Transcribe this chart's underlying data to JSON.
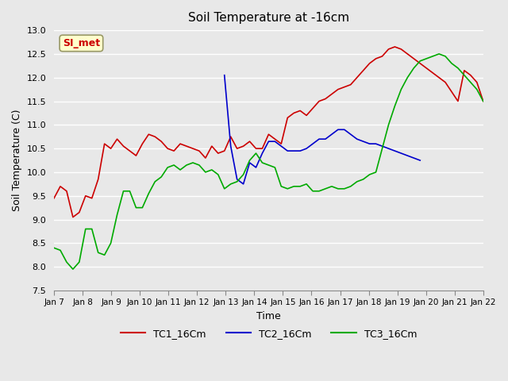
{
  "title": "Soil Temperature at -16cm",
  "xlabel": "Time",
  "ylabel": "Soil Temperature (C)",
  "ylim": [
    7.5,
    13.0
  ],
  "background_color": "#e8e8e8",
  "plot_bg_color": "#e8e8e8",
  "grid_color": "#ffffff",
  "annotation_text": "SI_met",
  "annotation_color": "#cc0000",
  "annotation_bg": "#ffffcc",
  "annotation_border": "#999966",
  "x_tick_labels": [
    "Jan 7",
    "Jan 8",
    "Jan 9",
    "Jan 10",
    "Jan 11",
    "Jan 12",
    "Jan 13",
    "Jan 14",
    "Jan 15",
    "Jan 16",
    "Jan 17",
    "Jan 18",
    "Jan 19",
    "Jan 20",
    "Jan 21",
    "Jan 22"
  ],
  "line_colors": {
    "TC1": "#cc0000",
    "TC2": "#0000cc",
    "TC3": "#00aa00"
  },
  "legend_labels": [
    "TC1_16Cm",
    "TC2_16Cm",
    "TC3_16Cm"
  ],
  "TC1_16Cm": [
    9.45,
    9.7,
    9.6,
    9.05,
    9.15,
    9.5,
    9.45,
    9.85,
    10.6,
    10.5,
    10.7,
    10.55,
    10.45,
    10.35,
    10.6,
    10.8,
    10.75,
    10.65,
    10.5,
    10.45,
    10.6,
    10.55,
    10.5,
    10.45,
    10.3,
    10.55,
    10.4,
    10.45,
    10.75,
    10.5,
    10.55,
    10.65,
    10.5,
    10.5,
    10.8,
    10.7,
    10.6,
    11.15,
    11.25,
    11.3,
    11.2,
    11.35,
    11.5,
    11.55,
    11.65,
    11.75,
    11.8,
    11.85,
    12.0,
    12.15,
    12.3,
    12.4,
    12.45,
    12.6,
    12.65,
    12.6,
    12.5,
    12.4,
    12.3,
    12.2,
    12.1,
    12.0,
    11.9,
    11.7,
    11.5,
    12.15,
    12.05,
    11.9,
    11.5
  ],
  "TC2_16Cm": [
    null,
    null,
    null,
    null,
    null,
    null,
    null,
    null,
    null,
    null,
    null,
    null,
    null,
    null,
    null,
    null,
    null,
    null,
    null,
    null,
    null,
    null,
    null,
    null,
    null,
    null,
    null,
    12.05,
    10.55,
    9.85,
    9.75,
    10.2,
    10.1,
    10.4,
    10.65,
    10.65,
    10.55,
    10.45,
    10.45,
    10.45,
    10.5,
    10.6,
    10.7,
    10.7,
    10.8,
    10.9,
    10.9,
    10.8,
    10.7,
    10.65,
    10.6,
    10.6,
    10.55,
    10.5,
    10.45,
    10.4,
    10.35,
    10.3,
    10.25,
    null,
    null,
    null,
    null,
    null,
    null,
    null,
    null,
    null,
    null
  ],
  "TC3_16Cm": [
    8.4,
    8.35,
    8.1,
    7.95,
    8.1,
    8.8,
    8.8,
    8.3,
    8.25,
    8.5,
    9.1,
    9.6,
    9.6,
    9.25,
    9.25,
    9.55,
    9.8,
    9.9,
    10.1,
    10.15,
    10.05,
    10.15,
    10.2,
    10.15,
    10.0,
    10.05,
    9.95,
    9.65,
    9.75,
    9.8,
    9.95,
    10.25,
    10.4,
    10.2,
    10.15,
    10.1,
    9.7,
    9.65,
    9.7,
    9.7,
    9.75,
    9.6,
    9.6,
    9.65,
    9.7,
    9.65,
    9.65,
    9.7,
    9.8,
    9.85,
    9.95,
    10.0,
    10.5,
    11.0,
    11.4,
    11.75,
    12.0,
    12.2,
    12.35,
    12.4,
    12.45,
    12.5,
    12.45,
    12.3,
    12.2,
    12.05,
    11.9,
    11.75,
    11.5
  ]
}
